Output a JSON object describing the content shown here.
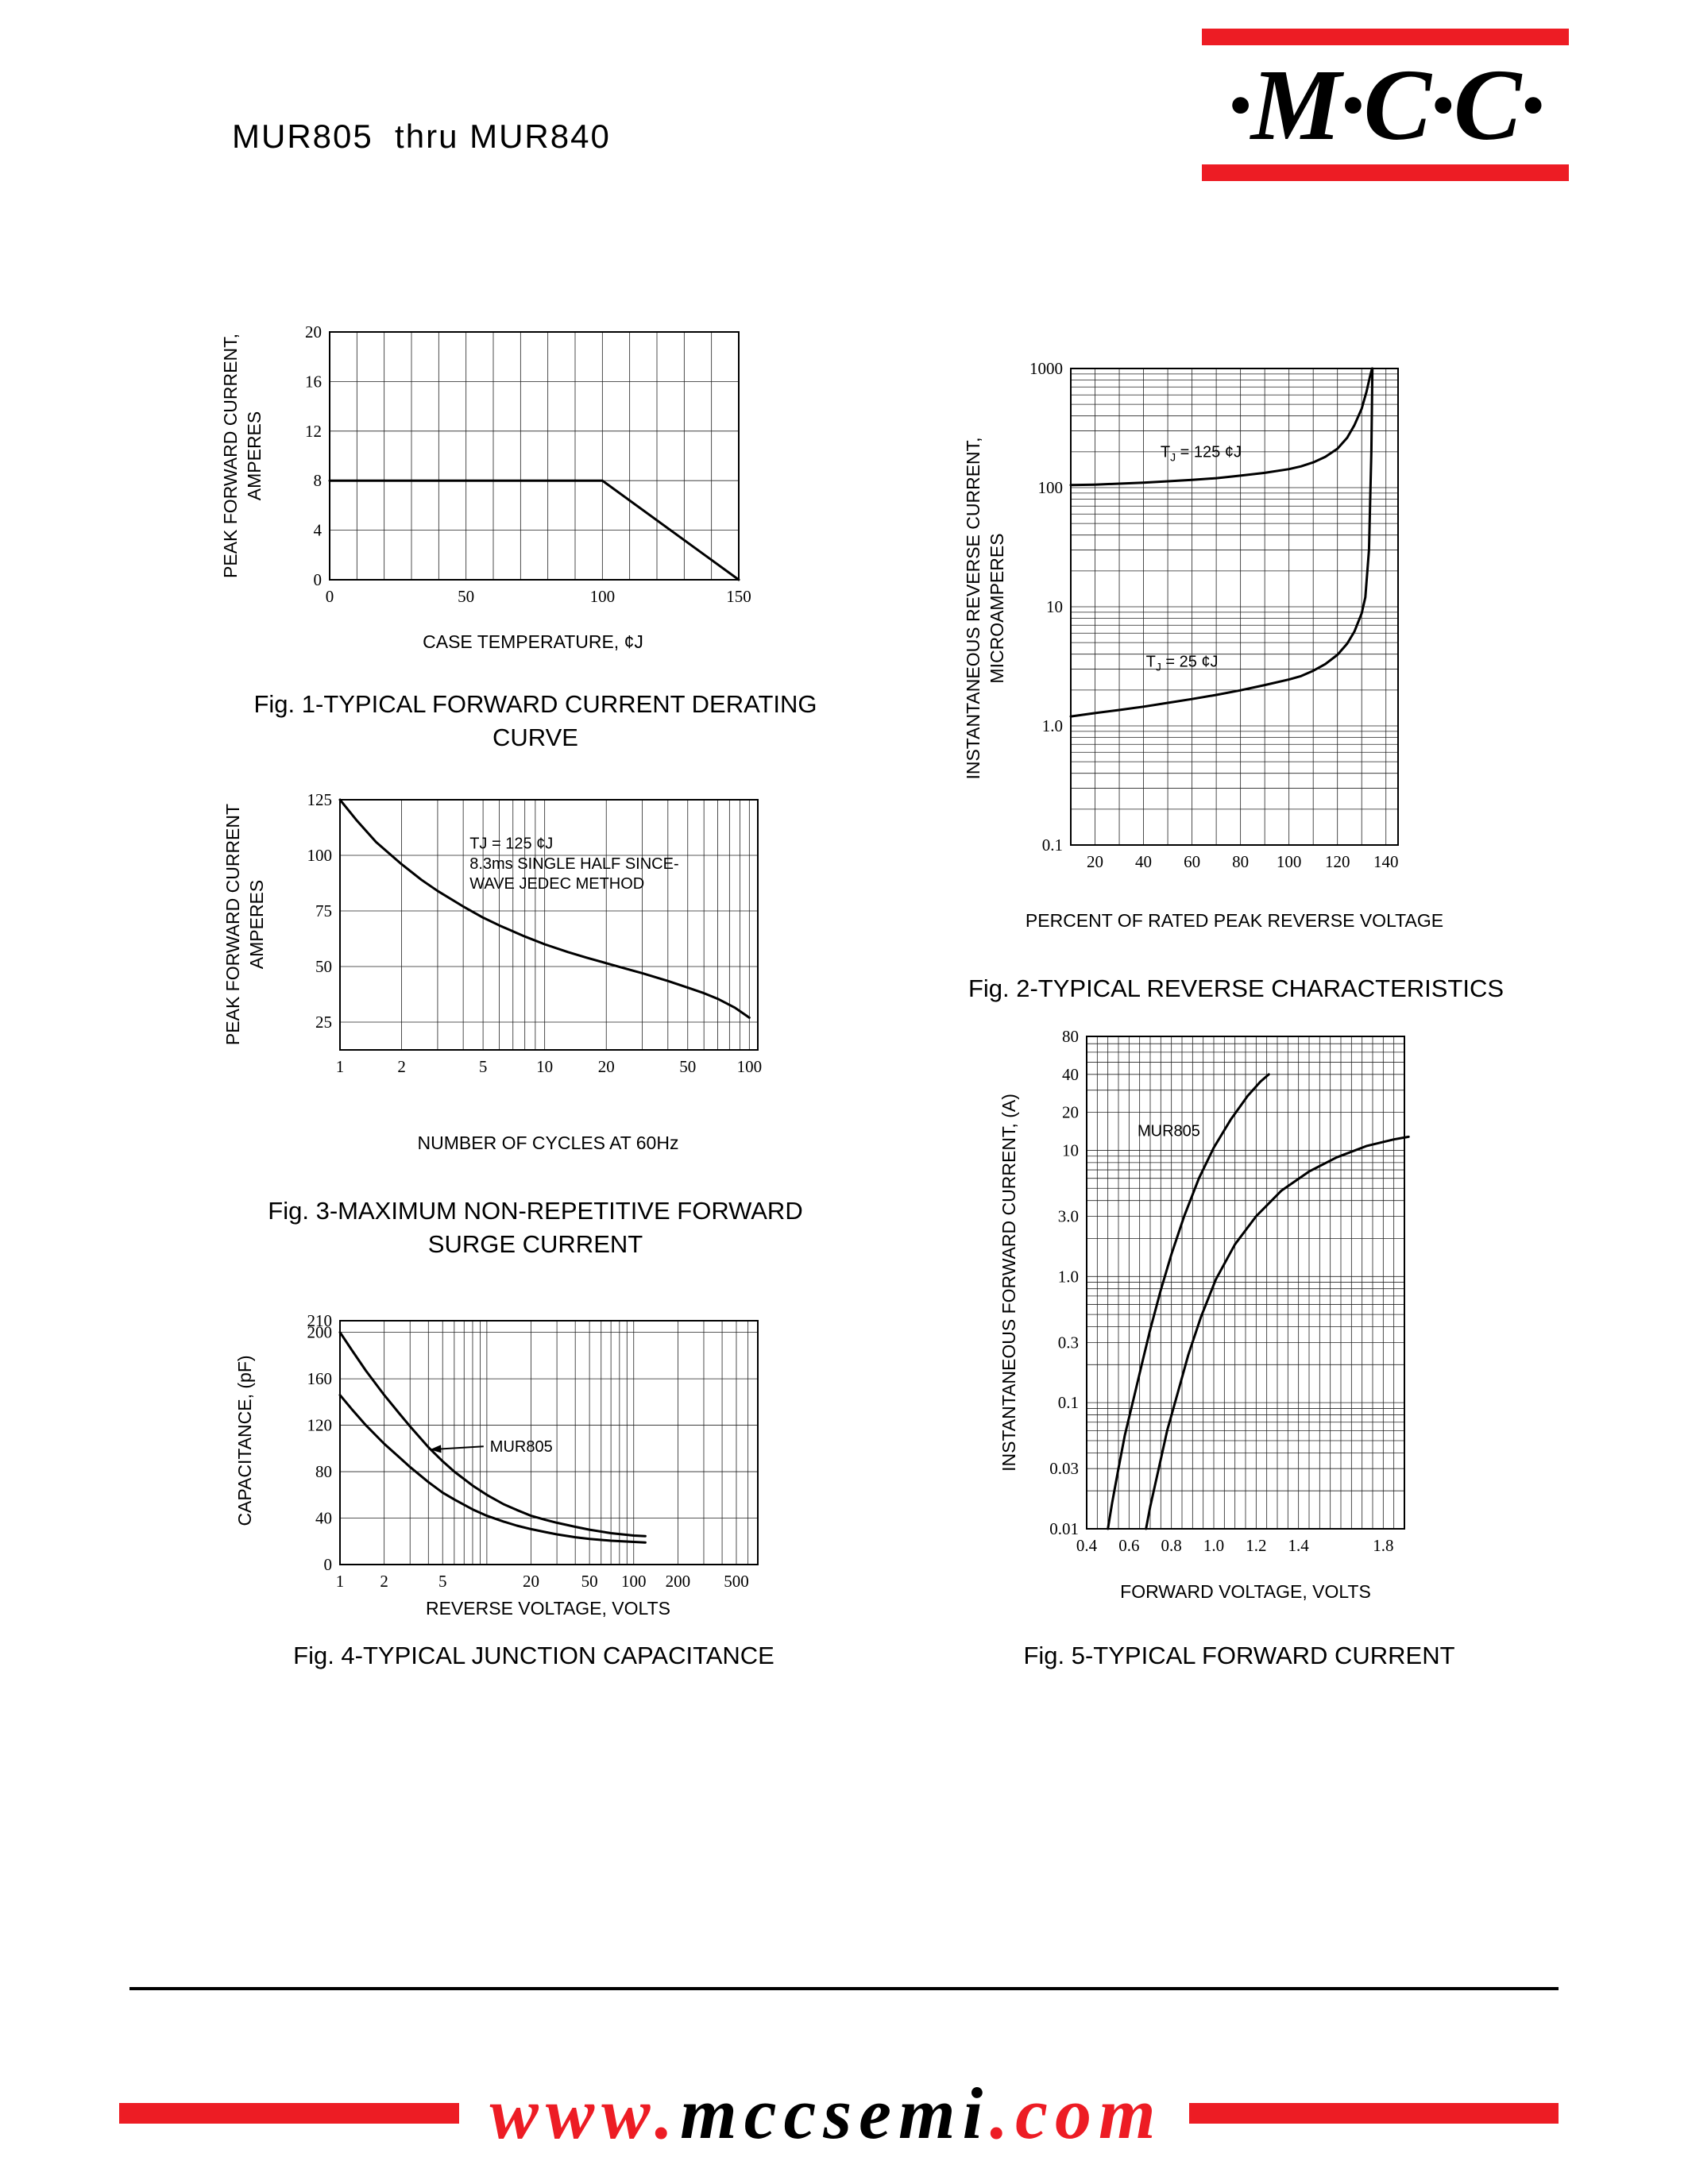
{
  "header": {
    "title": "MUR805  thru MUR840",
    "logo_text": "·M·C·C·"
  },
  "colors": {
    "brand_red": "#ed1c24"
  },
  "footer": {
    "url_www": "www.",
    "url_domain": "mccsemi",
    "url_com": ".com"
  },
  "chart_data": [
    {
      "name": "fig1-forward-current-derating",
      "type": "line",
      "caption_lines": [
        "Fig. 1-TYPICAL FORWARD CURRENT DERATING",
        "CURVE"
      ],
      "xlabel": "CASE TEMPERATURE, ¢J",
      "ylabel_lines": [
        "PEAK FORWARD CURRENT,",
        "AMPERES"
      ],
      "x": {
        "scale": "linear",
        "min": 0,
        "max": 150,
        "grid_step": 10,
        "ticks": [
          {
            "v": 0,
            "t": "0"
          },
          {
            "v": 50,
            "t": "50"
          },
          {
            "v": 100,
            "t": "100"
          },
          {
            "v": 150,
            "t": "150"
          }
        ]
      },
      "y": {
        "scale": "linear",
        "min": 0,
        "max": 20,
        "grid_step": 4,
        "ticks": [
          {
            "v": 20,
            "t": "20"
          },
          {
            "v": 16,
            "t": "16"
          },
          {
            "v": 12,
            "t": "12"
          },
          {
            "v": 8,
            "t": "8"
          },
          {
            "v": 4,
            "t": "4"
          },
          {
            "v": 0,
            "t": "0"
          }
        ]
      },
      "series": [
        {
          "name": "derating-curve",
          "points": [
            [
              0,
              8
            ],
            [
              100,
              8
            ],
            [
              150,
              0
            ]
          ]
        }
      ],
      "annotations": []
    },
    {
      "name": "fig2-reverse-characteristics",
      "type": "line",
      "caption_lines": [
        "Fig. 2-TYPICAL REVERSE CHARACTERISTICS"
      ],
      "xlabel": "PERCENT OF RATED PEAK REVERSE VOLTAGE",
      "ylabel_lines": [
        "INSTANTANEOUS REVERSE CURRENT,",
        "MICROAMPERES"
      ],
      "x": {
        "scale": "linear",
        "min": 10,
        "max": 145,
        "grid_step": 10,
        "grid_origin": 10,
        "ticks": [
          {
            "v": 20,
            "t": "20"
          },
          {
            "v": 40,
            "t": "40"
          },
          {
            "v": 60,
            "t": "60"
          },
          {
            "v": 80,
            "t": "80"
          },
          {
            "v": 100,
            "t": "100"
          },
          {
            "v": 120,
            "t": "120"
          },
          {
            "v": 140,
            "t": "140"
          }
        ]
      },
      "y": {
        "scale": "log",
        "min": 0.1,
        "max": 1000,
        "ticks": [
          {
            "v": 1000,
            "t": "1000"
          },
          {
            "v": 100,
            "t": "100"
          },
          {
            "v": 10,
            "t": "10"
          },
          {
            "v": 1,
            "t": "1.0"
          },
          {
            "v": 0.1,
            "t": "0.1"
          }
        ]
      },
      "series": [
        {
          "name": "tj-125c",
          "points": [
            [
              10,
              105
            ],
            [
              20,
              106
            ],
            [
              30,
              108
            ],
            [
              40,
              110
            ],
            [
              50,
              113
            ],
            [
              60,
              116
            ],
            [
              70,
              120
            ],
            [
              80,
              126
            ],
            [
              90,
              133
            ],
            [
              100,
              143
            ],
            [
              105,
              151
            ],
            [
              110,
              163
            ],
            [
              115,
              181
            ],
            [
              120,
              212
            ],
            [
              124,
              262
            ],
            [
              127,
              335
            ],
            [
              130,
              460
            ],
            [
              132,
              640
            ],
            [
              133.5,
              870
            ],
            [
              134.3,
              1000
            ]
          ]
        },
        {
          "name": "tj-25c",
          "points": [
            [
              10,
              1.2
            ],
            [
              20,
              1.28
            ],
            [
              30,
              1.36
            ],
            [
              40,
              1.45
            ],
            [
              50,
              1.56
            ],
            [
              60,
              1.68
            ],
            [
              70,
              1.82
            ],
            [
              80,
              1.99
            ],
            [
              90,
              2.2
            ],
            [
              100,
              2.45
            ],
            [
              105,
              2.62
            ],
            [
              110,
              2.9
            ],
            [
              115,
              3.3
            ],
            [
              120,
              3.95
            ],
            [
              124,
              4.9
            ],
            [
              127,
              6.2
            ],
            [
              130,
              8.8
            ],
            [
              131.5,
              12
            ],
            [
              133,
              30
            ],
            [
              134,
              200
            ],
            [
              134.4,
              1000
            ]
          ]
        }
      ],
      "annotations": [
        {
          "x": 47,
          "y": 180,
          "parts": [
            {
              "t": "T"
            },
            {
              "t": "J",
              "sub": true
            },
            {
              "t": " = 125 ¢J"
            }
          ]
        },
        {
          "x": 41,
          "y": 3.15,
          "parts": [
            {
              "t": "T"
            },
            {
              "t": "J",
              "sub": true
            },
            {
              "t": " = 25 ¢J"
            }
          ]
        }
      ]
    },
    {
      "name": "fig3-non-repetitive-surge-current",
      "type": "line",
      "caption_lines": [
        "Fig. 3-MAXIMUM NON-REPETITIVE FORWARD",
        "SURGE CURRENT"
      ],
      "xlabel": "NUMBER OF CYCLES AT 60Hz",
      "ylabel_lines": [
        "PEAK FORWARD CURRENT",
        "AMPERES"
      ],
      "x": {
        "scale": "log",
        "min": 1,
        "max": 110,
        "ticks": [
          {
            "v": 1,
            "t": "1"
          },
          {
            "v": 2,
            "t": "2"
          },
          {
            "v": 5,
            "t": "5"
          },
          {
            "v": 10,
            "t": "10"
          },
          {
            "v": 20,
            "t": "20"
          },
          {
            "v": 50,
            "t": "50"
          },
          {
            "v": 100,
            "t": "100"
          }
        ]
      },
      "y": {
        "scale": "linear",
        "min": 12.5,
        "max": 125,
        "ticks": [
          {
            "v": 125,
            "t": "125"
          },
          {
            "v": 100,
            "t": "100"
          },
          {
            "v": 75,
            "t": "75"
          },
          {
            "v": 50,
            "t": "50"
          },
          {
            "v": 25,
            "t": "25"
          }
        ]
      },
      "series": [
        {
          "name": "surge-current",
          "points": [
            [
              1,
              125
            ],
            [
              1.2,
              116
            ],
            [
              1.5,
              106
            ],
            [
              2,
              96
            ],
            [
              2.5,
              89
            ],
            [
              3,
              84
            ],
            [
              4,
              77
            ],
            [
              5,
              72
            ],
            [
              6,
              68.5
            ],
            [
              8,
              63.5
            ],
            [
              10,
              60
            ],
            [
              13,
              56.5
            ],
            [
              16,
              54
            ],
            [
              20,
              51.5
            ],
            [
              25,
              49
            ],
            [
              30,
              47
            ],
            [
              40,
              43.5
            ],
            [
              50,
              40.5
            ],
            [
              60,
              38
            ],
            [
              70,
              35.5
            ],
            [
              85,
              31.5
            ],
            [
              100,
              27
            ]
          ]
        }
      ],
      "annotations": [
        {
          "x": 4.3,
          "y": 103,
          "parts": [
            {
              "t": "TJ = 125 ¢J"
            }
          ]
        },
        {
          "x": 4.3,
          "y": 94,
          "parts": [
            {
              "t": "8.3ms SINGLE HALF SINCE-"
            }
          ]
        },
        {
          "x": 4.3,
          "y": 85,
          "parts": [
            {
              "t": "WAVE JEDEC METHOD"
            }
          ]
        }
      ]
    },
    {
      "name": "fig4-junction-capacitance",
      "type": "line",
      "caption_lines": [
        "Fig. 4-TYPICAL JUNCTION CAPACITANCE"
      ],
      "xlabel": "REVERSE VOLTAGE, VOLTS",
      "ylabel_lines": [
        "CAPACITANCE, (pF)"
      ],
      "x": {
        "scale": "log",
        "min": 1,
        "max": 700,
        "ticks": [
          {
            "v": 1,
            "t": "1"
          },
          {
            "v": 2,
            "t": "2"
          },
          {
            "v": 5,
            "t": "5"
          },
          {
            "v": 20,
            "t": "20"
          },
          {
            "v": 50,
            "t": "50"
          },
          {
            "v": 100,
            "t": "100"
          },
          {
            "v": 200,
            "t": "200"
          },
          {
            "v": 500,
            "t": "500"
          }
        ]
      },
      "y": {
        "scale": "linear",
        "min": 0,
        "max": 210,
        "ticks": [
          {
            "v": 210,
            "t": "210"
          },
          {
            "v": 200,
            "t": "200"
          },
          {
            "v": 160,
            "t": "160"
          },
          {
            "v": 120,
            "t": "120"
          },
          {
            "v": 80,
            "t": "80"
          },
          {
            "v": 40,
            "t": "40"
          },
          {
            "v": 0,
            "t": "0"
          }
        ]
      },
      "series": [
        {
          "name": "capacitance-upper",
          "points": [
            [
              1,
              200
            ],
            [
              1.2,
              185
            ],
            [
              1.5,
              167
            ],
            [
              2,
              146
            ],
            [
              2.5,
              131
            ],
            [
              3,
              119
            ],
            [
              4,
              101
            ],
            [
              5,
              89
            ],
            [
              6,
              80
            ],
            [
              8,
              68
            ],
            [
              10,
              60
            ],
            [
              13,
              52
            ],
            [
              16,
              47
            ],
            [
              20,
              42
            ],
            [
              25,
              38.5
            ],
            [
              30,
              36
            ],
            [
              40,
              32.5
            ],
            [
              50,
              30
            ],
            [
              70,
              27
            ],
            [
              100,
              25
            ],
            [
              120,
              24.5
            ]
          ]
        },
        {
          "name": "capacitance-lower",
          "points": [
            [
              1,
              146
            ],
            [
              1.2,
              134
            ],
            [
              1.5,
              120
            ],
            [
              2,
              104
            ],
            [
              2.5,
              93
            ],
            [
              3,
              84
            ],
            [
              4,
              71
            ],
            [
              5,
              62
            ],
            [
              6,
              56
            ],
            [
              8,
              47.5
            ],
            [
              10,
              42
            ],
            [
              13,
              37
            ],
            [
              16,
              33.5
            ],
            [
              20,
              30.5
            ],
            [
              25,
              28
            ],
            [
              30,
              26
            ],
            [
              40,
              23.5
            ],
            [
              50,
              22
            ],
            [
              70,
              20.5
            ],
            [
              100,
              19.5
            ],
            [
              120,
              19
            ]
          ]
        }
      ],
      "annotations": [
        {
          "x": 10.5,
          "y": 97,
          "parts": [
            {
              "t": "MUR805"
            }
          ],
          "arrow": {
            "x": 4.1,
            "y": 99
          }
        }
      ]
    },
    {
      "name": "fig5-typical-forward-current",
      "type": "line",
      "caption_lines": [
        "Fig. 5-TYPICAL FORWARD CURRENT"
      ],
      "xlabel": "FORWARD VOLTAGE, VOLTS",
      "ylabel_lines": [
        "INSTANTANEOUS FORWARD CURRENT, (A)"
      ],
      "x": {
        "scale": "linear",
        "min": 0.4,
        "max": 1.9,
        "grid_step": 0.05,
        "grid_origin": 0.4,
        "ticks": [
          {
            "v": 0.4,
            "t": "0.4"
          },
          {
            "v": 0.6,
            "t": "0.6"
          },
          {
            "v": 0.8,
            "t": "0.8"
          },
          {
            "v": 1.0,
            "t": "1.0"
          },
          {
            "v": 1.2,
            "t": "1.2"
          },
          {
            "v": 1.4,
            "t": "1.4"
          },
          {
            "v": 1.8,
            "t": "1.8"
          }
        ]
      },
      "y": {
        "scale": "log",
        "min": 0.01,
        "max": 80,
        "ticks": [
          {
            "v": 80,
            "t": "80"
          },
          {
            "v": 40,
            "t": "40"
          },
          {
            "v": 20,
            "t": "20"
          },
          {
            "v": 10,
            "t": "10"
          },
          {
            "v": 3,
            "t": "3.0"
          },
          {
            "v": 1,
            "t": "1.0"
          },
          {
            "v": 0.3,
            "t": "0.3"
          },
          {
            "v": 0.1,
            "t": "0.1"
          },
          {
            "v": 0.03,
            "t": "0.03"
          },
          {
            "v": 0.01,
            "t": "0.01"
          }
        ]
      },
      "series": [
        {
          "name": "mur805",
          "points": [
            [
              0.5,
              0.01
            ],
            [
              0.52,
              0.016
            ],
            [
              0.55,
              0.03
            ],
            [
              0.58,
              0.055
            ],
            [
              0.62,
              0.105
            ],
            [
              0.66,
              0.2
            ],
            [
              0.7,
              0.38
            ],
            [
              0.75,
              0.78
            ],
            [
              0.8,
              1.5
            ],
            [
              0.86,
              3
            ],
            [
              0.93,
              6
            ],
            [
              1,
              10.5
            ],
            [
              1.08,
              17.5
            ],
            [
              1.16,
              27
            ],
            [
              1.22,
              35
            ],
            [
              1.26,
              40
            ]
          ]
        },
        {
          "name": "mur840",
          "points": [
            [
              0.68,
              0.01
            ],
            [
              0.7,
              0.015
            ],
            [
              0.74,
              0.03
            ],
            [
              0.78,
              0.06
            ],
            [
              0.83,
              0.12
            ],
            [
              0.88,
              0.24
            ],
            [
              0.94,
              0.48
            ],
            [
              1.01,
              0.95
            ],
            [
              1.1,
              1.8
            ],
            [
              1.2,
              3
            ],
            [
              1.32,
              4.8
            ],
            [
              1.45,
              6.8
            ],
            [
              1.58,
              8.8
            ],
            [
              1.72,
              10.8
            ],
            [
              1.85,
              12.2
            ],
            [
              1.92,
              12.8
            ]
          ]
        }
      ],
      "annotations": [
        {
          "x": 0.64,
          "y": 13,
          "parts": [
            {
              "t": "MUR805"
            }
          ]
        }
      ]
    }
  ]
}
